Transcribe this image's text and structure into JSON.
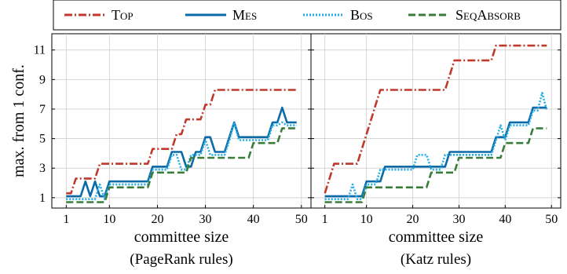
{
  "legend": [
    {
      "label": "Top",
      "color": "#c0392b",
      "dash": "dashdot"
    },
    {
      "label": "Mes",
      "color": "#0b6aa8",
      "dash": "solid"
    },
    {
      "label": "Bos",
      "color": "#22aee6",
      "dash": "dotted"
    },
    {
      "label": "SeqAbsorb",
      "color": "#3a7d3a",
      "dash": "dashed"
    }
  ],
  "y_label": "max. from 1 conf.",
  "chart_data": [
    {
      "type": "line",
      "xlabel": "committee size",
      "caption": "(PageRank rules)",
      "xlim": [
        -2,
        52
      ],
      "ylim": [
        0.3,
        12.1
      ],
      "xticks": [
        1,
        10,
        20,
        30,
        40,
        50
      ],
      "yticks": [
        1,
        3,
        5,
        7,
        9,
        11
      ],
      "grid": true,
      "series": [
        {
          "name": "Top",
          "color": "#c0392b",
          "x": [
            1,
            2,
            3,
            4,
            5,
            6,
            7,
            8,
            9,
            10,
            11,
            12,
            13,
            14,
            15,
            16,
            17,
            18,
            19,
            20,
            21,
            22,
            23,
            24,
            25,
            26,
            27,
            28,
            29,
            30,
            31,
            32,
            33,
            34,
            35,
            36,
            37,
            38,
            39,
            40,
            41,
            42,
            43,
            44,
            45,
            46,
            47,
            48,
            49
          ],
          "y": [
            1.3,
            1.3,
            2.3,
            2.3,
            2.3,
            2.3,
            2.3,
            3.3,
            3.3,
            3.3,
            3.3,
            3.3,
            3.3,
            3.3,
            3.3,
            3.3,
            3.3,
            3.3,
            4.3,
            4.3,
            4.3,
            4.3,
            4.3,
            5.3,
            5.3,
            6.3,
            6.3,
            6.3,
            6.3,
            7.3,
            7.3,
            8.3,
            8.3,
            8.3,
            8.3,
            8.3,
            8.3,
            8.3,
            8.3,
            8.3,
            8.3,
            8.3,
            8.3,
            8.3,
            8.3,
            8.3,
            8.3,
            8.3,
            8.3
          ]
        },
        {
          "name": "Mes",
          "color": "#0b6aa8",
          "x": [
            1,
            2,
            3,
            4,
            5,
            6,
            7,
            8,
            9,
            10,
            11,
            12,
            13,
            14,
            15,
            16,
            17,
            18,
            19,
            20,
            21,
            22,
            23,
            24,
            25,
            26,
            27,
            28,
            29,
            30,
            31,
            32,
            33,
            34,
            35,
            36,
            37,
            38,
            39,
            40,
            41,
            42,
            43,
            44,
            45,
            46,
            47,
            48,
            49
          ],
          "y": [
            1.1,
            1.1,
            1.1,
            1.1,
            2.1,
            1.1,
            2.1,
            1.1,
            1.1,
            2.1,
            2.1,
            2.1,
            2.1,
            2.1,
            2.1,
            2.1,
            2.1,
            2.1,
            3.1,
            3.1,
            3.1,
            3.1,
            4.1,
            4.1,
            4.1,
            3.1,
            3.1,
            4.1,
            4.1,
            5.1,
            5.1,
            4.1,
            4.1,
            4.1,
            5.1,
            6.1,
            5.1,
            5.1,
            5.1,
            5.1,
            5.1,
            5.1,
            5.1,
            6.1,
            6.1,
            7.1,
            6.1,
            6.1,
            6.1
          ]
        },
        {
          "name": "Bos",
          "color": "#22aee6",
          "x": [
            1,
            2,
            3,
            4,
            5,
            6,
            7,
            8,
            9,
            10,
            11,
            12,
            13,
            14,
            15,
            16,
            17,
            18,
            19,
            20,
            21,
            22,
            23,
            24,
            25,
            26,
            27,
            28,
            29,
            30,
            31,
            32,
            33,
            34,
            35,
            36,
            37,
            38,
            39,
            40,
            41,
            42,
            43,
            44,
            45,
            46,
            47,
            48,
            49
          ],
          "y": [
            0.9,
            0.9,
            0.9,
            0.9,
            0.9,
            0.9,
            0.9,
            1.9,
            0.9,
            1.9,
            1.9,
            1.9,
            1.9,
            1.9,
            1.9,
            1.9,
            1.9,
            1.9,
            2.9,
            2.9,
            2.9,
            2.9,
            3.9,
            3.9,
            2.9,
            2.9,
            3.9,
            3.9,
            3.9,
            4.9,
            3.9,
            3.9,
            3.9,
            3.9,
            4.9,
            6.1,
            4.9,
            4.9,
            4.9,
            4.9,
            4.9,
            4.9,
            4.9,
            5.9,
            5.9,
            6.1,
            5.9,
            5.9,
            5.9
          ]
        },
        {
          "name": "SeqAbsorb",
          "color": "#3a7d3a",
          "x": [
            1,
            2,
            3,
            4,
            5,
            6,
            7,
            8,
            9,
            10,
            11,
            12,
            13,
            14,
            15,
            16,
            17,
            18,
            19,
            20,
            21,
            22,
            23,
            24,
            25,
            26,
            27,
            28,
            29,
            30,
            31,
            32,
            33,
            34,
            35,
            36,
            37,
            38,
            39,
            40,
            41,
            42,
            43,
            44,
            45,
            46,
            47,
            48,
            49
          ],
          "y": [
            0.7,
            0.7,
            0.7,
            0.7,
            0.7,
            0.7,
            0.7,
            0.7,
            0.7,
            1.7,
            1.7,
            1.7,
            1.7,
            1.7,
            1.7,
            1.7,
            1.7,
            1.7,
            2.7,
            2.7,
            2.7,
            2.7,
            2.7,
            2.7,
            2.7,
            2.7,
            3.7,
            3.7,
            3.7,
            3.7,
            3.7,
            3.7,
            3.7,
            3.7,
            3.7,
            3.7,
            3.7,
            3.7,
            3.7,
            4.7,
            4.7,
            4.7,
            4.7,
            4.7,
            4.7,
            5.7,
            5.7,
            5.7,
            5.7
          ]
        }
      ]
    },
    {
      "type": "line",
      "xlabel": "committee size",
      "caption": "(Katz rules)",
      "xlim": [
        -2,
        52
      ],
      "ylim": [
        0.3,
        12.1
      ],
      "xticks": [
        1,
        10,
        20,
        30,
        40,
        50
      ],
      "yticks": [
        1,
        3,
        5,
        7,
        9,
        11
      ],
      "grid": true,
      "series": [
        {
          "name": "Top",
          "color": "#c0392b",
          "x": [
            1,
            2,
            3,
            4,
            5,
            6,
            7,
            8,
            9,
            10,
            11,
            12,
            13,
            14,
            15,
            16,
            17,
            18,
            19,
            20,
            21,
            22,
            23,
            24,
            25,
            26,
            27,
            28,
            29,
            30,
            31,
            32,
            33,
            34,
            35,
            36,
            37,
            38,
            39,
            40,
            41,
            42,
            43,
            44,
            45,
            46,
            47,
            48,
            49
          ],
          "y": [
            1.3,
            2.3,
            3.3,
            3.3,
            3.3,
            3.3,
            3.3,
            3.3,
            4.3,
            5.3,
            6.3,
            7.3,
            8.3,
            8.3,
            8.3,
            8.3,
            8.3,
            8.3,
            8.3,
            8.3,
            8.3,
            8.3,
            8.3,
            8.3,
            8.3,
            8.3,
            8.3,
            9.3,
            10.3,
            10.3,
            10.3,
            10.3,
            10.3,
            10.3,
            10.3,
            10.3,
            10.3,
            11.3,
            11.3,
            11.3,
            11.3,
            11.3,
            11.3,
            11.3,
            11.3,
            11.3,
            11.3,
            11.3,
            11.3
          ]
        },
        {
          "name": "Mes",
          "color": "#0b6aa8",
          "x": [
            1,
            2,
            3,
            4,
            5,
            6,
            7,
            8,
            9,
            10,
            11,
            12,
            13,
            14,
            15,
            16,
            17,
            18,
            19,
            20,
            21,
            22,
            23,
            24,
            25,
            26,
            27,
            28,
            29,
            30,
            31,
            32,
            33,
            34,
            35,
            36,
            37,
            38,
            39,
            40,
            41,
            42,
            43,
            44,
            45,
            46,
            47,
            48,
            49
          ],
          "y": [
            1.1,
            1.1,
            1.1,
            1.1,
            1.1,
            1.1,
            1.1,
            1.1,
            1.1,
            2.1,
            2.1,
            2.1,
            2.1,
            3.1,
            3.1,
            3.1,
            3.1,
            3.1,
            3.1,
            3.1,
            3.1,
            3.1,
            3.1,
            3.1,
            3.1,
            3.1,
            3.1,
            4.1,
            4.1,
            4.1,
            4.1,
            4.1,
            4.1,
            4.1,
            4.1,
            4.1,
            4.1,
            5.1,
            5.1,
            5.1,
            6.1,
            6.1,
            6.1,
            6.1,
            6.1,
            7.1,
            7.1,
            7.1,
            7.1
          ]
        },
        {
          "name": "Bos",
          "color": "#22aee6",
          "x": [
            1,
            2,
            3,
            4,
            5,
            6,
            7,
            8,
            9,
            10,
            11,
            12,
            13,
            14,
            15,
            16,
            17,
            18,
            19,
            20,
            21,
            22,
            23,
            24,
            25,
            26,
            27,
            28,
            29,
            30,
            31,
            32,
            33,
            34,
            35,
            36,
            37,
            38,
            39,
            40,
            41,
            42,
            43,
            44,
            45,
            46,
            47,
            48,
            49
          ],
          "y": [
            0.9,
            0.9,
            0.9,
            0.9,
            0.9,
            0.9,
            1.9,
            0.9,
            0.9,
            1.9,
            1.9,
            1.9,
            2.9,
            2.9,
            2.9,
            2.9,
            2.9,
            2.9,
            2.9,
            2.9,
            3.9,
            3.9,
            3.9,
            2.9,
            2.9,
            2.9,
            3.9,
            3.9,
            3.9,
            3.9,
            3.9,
            3.9,
            3.9,
            3.9,
            3.9,
            3.9,
            3.9,
            4.9,
            5.9,
            4.9,
            5.9,
            5.9,
            5.9,
            5.9,
            5.9,
            6.9,
            6.9,
            8.1,
            6.9
          ]
        },
        {
          "name": "SeqAbsorb",
          "color": "#3a7d3a",
          "x": [
            1,
            2,
            3,
            4,
            5,
            6,
            7,
            8,
            9,
            10,
            11,
            12,
            13,
            14,
            15,
            16,
            17,
            18,
            19,
            20,
            21,
            22,
            23,
            24,
            25,
            26,
            27,
            28,
            29,
            30,
            31,
            32,
            33,
            34,
            35,
            36,
            37,
            38,
            39,
            40,
            41,
            42,
            43,
            44,
            45,
            46,
            47,
            48,
            49
          ],
          "y": [
            0.7,
            0.7,
            0.7,
            0.7,
            0.7,
            0.7,
            0.7,
            0.7,
            0.7,
            1.7,
            1.7,
            1.7,
            1.7,
            1.7,
            1.7,
            1.7,
            1.7,
            1.7,
            1.7,
            1.7,
            1.7,
            1.7,
            1.7,
            2.7,
            2.7,
            2.7,
            2.7,
            2.7,
            2.7,
            3.7,
            3.7,
            3.7,
            3.7,
            3.7,
            3.7,
            3.7,
            3.7,
            3.7,
            3.7,
            4.7,
            4.7,
            4.7,
            4.7,
            4.7,
            4.7,
            5.7,
            5.7,
            5.7,
            5.7
          ]
        }
      ]
    }
  ]
}
